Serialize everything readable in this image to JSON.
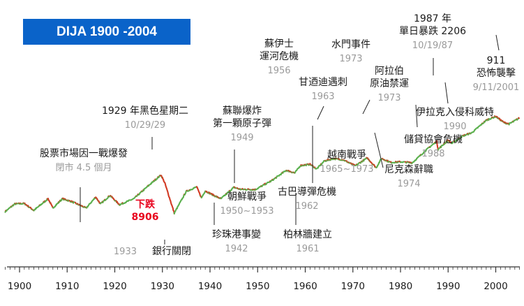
{
  "chart_data": {
    "type": "line",
    "title": "DIJA 1900 -2004",
    "x_ticks": [
      "1900",
      "1910",
      "1920",
      "1930",
      "1940",
      "1950",
      "1960",
      "1970",
      "1980",
      "1990",
      "2000"
    ],
    "xlim": [
      1897,
      2005
    ],
    "scale": "log",
    "colors": {
      "up": "#5bb04e",
      "down": "#d23a24",
      "highlight": "#e8001c",
      "date": "#9a9a9a",
      "label": "#1a1a1a"
    },
    "series": [
      {
        "x": [
          1897,
          1899,
          1901,
          1903,
          1906,
          1907,
          1909,
          1911,
          1914,
          1916,
          1917,
          1919,
          1921,
          1924,
          1927,
          1929.7,
          1930.5,
          1932.5,
          1935,
          1937.2,
          1938.2,
          1939,
          1941,
          1942.3,
          1945,
          1946.3,
          1949.5,
          1953,
          1956,
          1957.8,
          1959,
          1961,
          1962.4,
          1964,
          1966,
          1968,
          1970.5,
          1973,
          1974.9,
          1976,
          1978,
          1980,
          1982.5,
          1986,
          1987.6,
          1987.9,
          1990,
          1990.8,
          1993,
          1995,
          1998,
          2000,
          2001.7,
          2002.8,
          2004.9
        ],
        "y": [
          45,
          70,
          72,
          48,
          95,
          55,
          95,
          80,
          55,
          105,
          70,
          115,
          67,
          95,
          200,
          381,
          240,
          41,
          145,
          190,
          100,
          150,
          112,
          95,
          185,
          165,
          162,
          275,
          500,
          430,
          660,
          710,
          540,
          860,
          990,
          920,
          650,
          1030,
          580,
          1000,
          790,
          820,
          780,
          1900,
          2700,
          1700,
          2900,
          2400,
          3700,
          4500,
          9300,
          11700,
          8200,
          7500,
          10500
        ]
      }
    ],
    "events": [
      {
        "label": [
          "股票市場因一戰爆發"
        ],
        "date": "閉市 4.5 個月"
      },
      {
        "label": [
          "1929 年黑色星期二"
        ],
        "date": "10/29/29"
      },
      {
        "label": [
          "下跌",
          "8906"
        ]
      },
      {
        "label": [
          "銀行關閉"
        ],
        "date": "1933"
      },
      {
        "label": [
          "珍珠港事變"
        ],
        "date": "1942"
      },
      {
        "label": [
          "蘇聯爆炸",
          "第一顆原子彈"
        ],
        "date": "1949"
      },
      {
        "label": [
          "朝鮮戰爭"
        ],
        "date": "1950~1953"
      },
      {
        "label": [
          "蘇伊士",
          "運河危機"
        ],
        "date": "1956"
      },
      {
        "label": [
          "柏林牆建立"
        ],
        "date": "1961"
      },
      {
        "label": [
          "古巴導彈危機"
        ],
        "date": "1962"
      },
      {
        "label": [
          "甘迺迪遇刺"
        ],
        "date": "1963"
      },
      {
        "label": [
          "水門事件"
        ],
        "date": "1973"
      },
      {
        "label": [
          "越南戰爭"
        ],
        "date": "1965~1973"
      },
      {
        "label": [
          "阿拉伯",
          "原油禁運"
        ],
        "date": "1973"
      },
      {
        "label": [
          "尼克森辭職"
        ],
        "date": "1974"
      },
      {
        "label": [
          "儲貸協會危機"
        ],
        "date": "1988"
      },
      {
        "label": [
          "1987 年",
          "單日暴跌 2206"
        ],
        "date": "10/19/87"
      },
      {
        "label": [
          "伊拉克入侵科威特"
        ],
        "date": "1990"
      },
      {
        "label": [
          "911",
          "恐怖襲擊"
        ],
        "date": "9/11/2001"
      }
    ]
  }
}
